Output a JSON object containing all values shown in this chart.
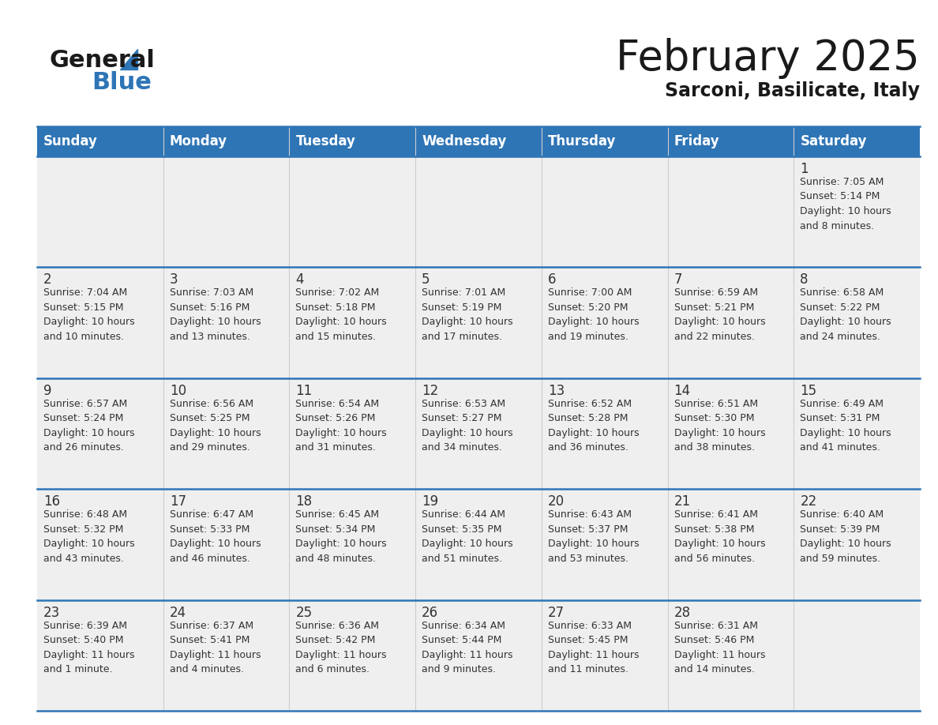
{
  "title": "February 2025",
  "subtitle": "Sarconi, Basilicate, Italy",
  "header_bg": "#2E75B6",
  "header_text_color": "#FFFFFF",
  "cell_bg": "#EFEFEF",
  "cell_bg_white": "#FFFFFF",
  "border_color": "#2E75B6",
  "text_color": "#333333",
  "day_names": [
    "Sunday",
    "Monday",
    "Tuesday",
    "Wednesday",
    "Thursday",
    "Friday",
    "Saturday"
  ],
  "weeks": [
    [
      {
        "day": null,
        "info": null
      },
      {
        "day": null,
        "info": null
      },
      {
        "day": null,
        "info": null
      },
      {
        "day": null,
        "info": null
      },
      {
        "day": null,
        "info": null
      },
      {
        "day": null,
        "info": null
      },
      {
        "day": 1,
        "info": "Sunrise: 7:05 AM\nSunset: 5:14 PM\nDaylight: 10 hours\nand 8 minutes."
      }
    ],
    [
      {
        "day": 2,
        "info": "Sunrise: 7:04 AM\nSunset: 5:15 PM\nDaylight: 10 hours\nand 10 minutes."
      },
      {
        "day": 3,
        "info": "Sunrise: 7:03 AM\nSunset: 5:16 PM\nDaylight: 10 hours\nand 13 minutes."
      },
      {
        "day": 4,
        "info": "Sunrise: 7:02 AM\nSunset: 5:18 PM\nDaylight: 10 hours\nand 15 minutes."
      },
      {
        "day": 5,
        "info": "Sunrise: 7:01 AM\nSunset: 5:19 PM\nDaylight: 10 hours\nand 17 minutes."
      },
      {
        "day": 6,
        "info": "Sunrise: 7:00 AM\nSunset: 5:20 PM\nDaylight: 10 hours\nand 19 minutes."
      },
      {
        "day": 7,
        "info": "Sunrise: 6:59 AM\nSunset: 5:21 PM\nDaylight: 10 hours\nand 22 minutes."
      },
      {
        "day": 8,
        "info": "Sunrise: 6:58 AM\nSunset: 5:22 PM\nDaylight: 10 hours\nand 24 minutes."
      }
    ],
    [
      {
        "day": 9,
        "info": "Sunrise: 6:57 AM\nSunset: 5:24 PM\nDaylight: 10 hours\nand 26 minutes."
      },
      {
        "day": 10,
        "info": "Sunrise: 6:56 AM\nSunset: 5:25 PM\nDaylight: 10 hours\nand 29 minutes."
      },
      {
        "day": 11,
        "info": "Sunrise: 6:54 AM\nSunset: 5:26 PM\nDaylight: 10 hours\nand 31 minutes."
      },
      {
        "day": 12,
        "info": "Sunrise: 6:53 AM\nSunset: 5:27 PM\nDaylight: 10 hours\nand 34 minutes."
      },
      {
        "day": 13,
        "info": "Sunrise: 6:52 AM\nSunset: 5:28 PM\nDaylight: 10 hours\nand 36 minutes."
      },
      {
        "day": 14,
        "info": "Sunrise: 6:51 AM\nSunset: 5:30 PM\nDaylight: 10 hours\nand 38 minutes."
      },
      {
        "day": 15,
        "info": "Sunrise: 6:49 AM\nSunset: 5:31 PM\nDaylight: 10 hours\nand 41 minutes."
      }
    ],
    [
      {
        "day": 16,
        "info": "Sunrise: 6:48 AM\nSunset: 5:32 PM\nDaylight: 10 hours\nand 43 minutes."
      },
      {
        "day": 17,
        "info": "Sunrise: 6:47 AM\nSunset: 5:33 PM\nDaylight: 10 hours\nand 46 minutes."
      },
      {
        "day": 18,
        "info": "Sunrise: 6:45 AM\nSunset: 5:34 PM\nDaylight: 10 hours\nand 48 minutes."
      },
      {
        "day": 19,
        "info": "Sunrise: 6:44 AM\nSunset: 5:35 PM\nDaylight: 10 hours\nand 51 minutes."
      },
      {
        "day": 20,
        "info": "Sunrise: 6:43 AM\nSunset: 5:37 PM\nDaylight: 10 hours\nand 53 minutes."
      },
      {
        "day": 21,
        "info": "Sunrise: 6:41 AM\nSunset: 5:38 PM\nDaylight: 10 hours\nand 56 minutes."
      },
      {
        "day": 22,
        "info": "Sunrise: 6:40 AM\nSunset: 5:39 PM\nDaylight: 10 hours\nand 59 minutes."
      }
    ],
    [
      {
        "day": 23,
        "info": "Sunrise: 6:39 AM\nSunset: 5:40 PM\nDaylight: 11 hours\nand 1 minute."
      },
      {
        "day": 24,
        "info": "Sunrise: 6:37 AM\nSunset: 5:41 PM\nDaylight: 11 hours\nand 4 minutes."
      },
      {
        "day": 25,
        "info": "Sunrise: 6:36 AM\nSunset: 5:42 PM\nDaylight: 11 hours\nand 6 minutes."
      },
      {
        "day": 26,
        "info": "Sunrise: 6:34 AM\nSunset: 5:44 PM\nDaylight: 11 hours\nand 9 minutes."
      },
      {
        "day": 27,
        "info": "Sunrise: 6:33 AM\nSunset: 5:45 PM\nDaylight: 11 hours\nand 11 minutes."
      },
      {
        "day": 28,
        "info": "Sunrise: 6:31 AM\nSunset: 5:46 PM\nDaylight: 11 hours\nand 14 minutes."
      },
      {
        "day": null,
        "info": null
      }
    ]
  ],
  "logo_color_general": "#1a1a1a",
  "logo_color_blue": "#2E75B6",
  "title_fontsize": 38,
  "subtitle_fontsize": 17,
  "header_fontsize": 12,
  "day_num_fontsize": 12,
  "info_fontsize": 9
}
